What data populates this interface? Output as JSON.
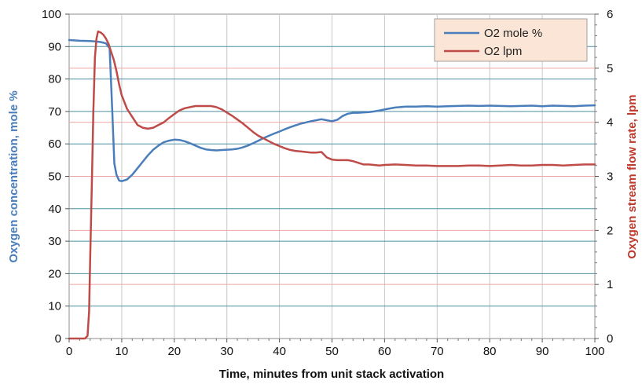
{
  "chart_data": {
    "type": "line",
    "title": "",
    "xlabel": "Time, minutes from unit stack activation",
    "ylabel_left": "Oxygen concentration, mole %",
    "ylabel_right": "Oxygen stream flow rate, lpm",
    "xlim": [
      0,
      100
    ],
    "ylim_left": [
      0,
      100
    ],
    "ylim_right": [
      0,
      6
    ],
    "x_ticks": [
      0,
      10,
      20,
      30,
      40,
      50,
      60,
      70,
      80,
      90,
      100
    ],
    "y_ticks_left": [
      0,
      10,
      20,
      30,
      40,
      50,
      60,
      70,
      80,
      90,
      100
    ],
    "y_ticks_right": [
      0,
      1,
      2,
      3,
      4,
      5,
      6
    ],
    "grid": true,
    "legend_position": "top-right",
    "colors": {
      "o2_mole": "#4a7ebb",
      "o2_lpm": "#be4b48",
      "grid_left": "#4d8fa0",
      "grid_right": "#f0a5a5",
      "legend_bg": "#fbe5d6",
      "left_axis_label": "#4a7ebb",
      "right_axis_label": "#c0392b"
    },
    "series": [
      {
        "name": "O2 mole %",
        "axis": "left",
        "x": [
          0,
          2,
          4,
          5,
          6,
          7,
          7.7,
          8.2,
          8.6,
          9,
          9.5,
          10,
          11,
          12,
          13,
          14,
          15,
          16,
          17,
          18,
          19,
          20,
          21,
          22,
          23,
          24,
          25,
          26,
          27,
          28,
          29,
          30,
          31,
          32,
          33,
          34,
          35,
          36,
          37,
          38,
          39,
          40,
          41,
          42,
          43,
          44,
          45,
          46,
          47,
          48,
          49,
          50,
          51,
          52,
          53,
          54,
          55,
          56,
          57,
          58,
          59,
          60,
          62,
          64,
          66,
          68,
          70,
          72,
          74,
          76,
          78,
          80,
          82,
          84,
          86,
          88,
          90,
          92,
          94,
          96,
          98,
          100
        ],
        "y": [
          92,
          91.8,
          91.7,
          91.6,
          91.4,
          91,
          89.5,
          70,
          54,
          50.5,
          48.7,
          48.5,
          49,
          50.5,
          52.5,
          54.5,
          56.5,
          58.2,
          59.5,
          60.5,
          61,
          61.3,
          61.2,
          60.8,
          60.2,
          59.5,
          58.8,
          58.3,
          58.1,
          58,
          58.1,
          58.2,
          58.3,
          58.5,
          58.9,
          59.5,
          60.2,
          61,
          61.8,
          62.5,
          63.2,
          63.8,
          64.5,
          65.1,
          65.7,
          66.2,
          66.6,
          67,
          67.3,
          67.6,
          67.3,
          67,
          67.4,
          68.6,
          69.3,
          69.6,
          69.6,
          69.7,
          69.8,
          70,
          70.3,
          70.6,
          71.2,
          71.5,
          71.5,
          71.6,
          71.5,
          71.6,
          71.7,
          71.8,
          71.7,
          71.8,
          71.7,
          71.6,
          71.7,
          71.8,
          71.6,
          71.8,
          71.7,
          71.6,
          71.8,
          71.9
        ]
      },
      {
        "name": "O2 lpm",
        "axis": "right",
        "x": [
          0,
          1,
          2,
          3,
          3.5,
          3.8,
          4,
          4.3,
          4.6,
          4.9,
          5.2,
          5.5,
          6,
          6.5,
          7,
          7.5,
          8,
          8.5,
          9,
          9.5,
          10,
          11,
          12,
          13,
          14,
          15,
          16,
          17,
          18,
          19,
          20,
          21,
          22,
          23,
          24,
          25,
          26,
          27,
          28,
          29,
          30,
          31,
          32,
          33,
          34,
          35,
          36,
          37,
          38,
          39,
          40,
          41,
          42,
          43,
          44,
          45,
          46,
          47,
          48,
          49,
          50,
          51,
          52,
          53,
          54,
          55,
          56,
          57,
          58,
          59,
          60,
          62,
          64,
          66,
          68,
          70,
          72,
          74,
          76,
          78,
          80,
          82,
          84,
          86,
          88,
          90,
          92,
          94,
          96,
          98,
          100
        ],
        "y": [
          0,
          0,
          0,
          0,
          0.05,
          0.5,
          1.5,
          2.8,
          4.2,
          5.2,
          5.55,
          5.68,
          5.66,
          5.62,
          5.55,
          5.45,
          5.3,
          5.15,
          4.95,
          4.7,
          4.5,
          4.25,
          4.1,
          3.95,
          3.9,
          3.88,
          3.9,
          3.95,
          4.0,
          4.08,
          4.15,
          4.22,
          4.26,
          4.28,
          4.3,
          4.3,
          4.3,
          4.3,
          4.28,
          4.24,
          4.18,
          4.12,
          4.05,
          3.98,
          3.9,
          3.82,
          3.75,
          3.7,
          3.65,
          3.6,
          3.56,
          3.52,
          3.49,
          3.47,
          3.46,
          3.45,
          3.44,
          3.44,
          3.45,
          3.35,
          3.31,
          3.3,
          3.3,
          3.3,
          3.28,
          3.25,
          3.22,
          3.22,
          3.21,
          3.2,
          3.21,
          3.22,
          3.21,
          3.2,
          3.2,
          3.19,
          3.19,
          3.19,
          3.2,
          3.2,
          3.19,
          3.2,
          3.21,
          3.2,
          3.2,
          3.21,
          3.21,
          3.2,
          3.21,
          3.22,
          3.22
        ]
      }
    ]
  }
}
